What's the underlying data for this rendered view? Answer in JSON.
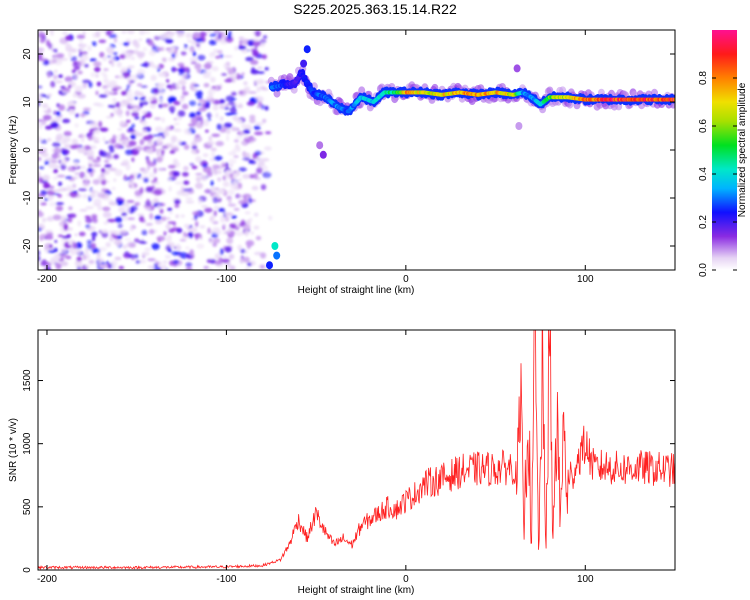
{
  "title": "S225.2025.363.15.14.R22",
  "chart_data": [
    {
      "type": "heatmap",
      "xlabel": "Height of straight line (km)",
      "ylabel": "Frequency (Hz)",
      "xlim": [
        -205,
        150
      ],
      "ylim": [
        -25,
        25
      ],
      "xticks": [
        -200,
        -100,
        0,
        100
      ],
      "xtick_labels": [
        "-200",
        "-100",
        "0",
        "100"
      ],
      "yticks": [
        20,
        10,
        0,
        -10,
        -20
      ],
      "ytick_labels": [
        "20",
        "10",
        "0",
        "-10",
        "-20"
      ],
      "noise_region_x": [
        -205,
        -78
      ],
      "signal_band": {
        "x": [
          -75,
          -62,
          -58,
          -52,
          -45,
          -38,
          -32,
          -25,
          -18,
          -12,
          -5,
          0,
          10,
          20,
          30,
          40,
          50,
          60,
          65,
          70,
          75,
          80,
          85,
          90,
          100,
          110,
          120,
          130,
          140,
          150
        ],
        "freq_hz": [
          13,
          14,
          16,
          12,
          11,
          9,
          8,
          11,
          10,
          12,
          12,
          12,
          12,
          11.5,
          12,
          11.5,
          12,
          11.5,
          12,
          11,
          9.5,
          11,
          11,
          11,
          10.5,
          10.5,
          10.5,
          10.5,
          10.5,
          10.5
        ],
        "amplitude": [
          0.35,
          0.2,
          0.25,
          0.3,
          0.3,
          0.35,
          0.3,
          0.4,
          0.4,
          0.45,
          0.55,
          0.85,
          0.7,
          0.75,
          0.8,
          0.85,
          0.8,
          0.7,
          0.35,
          0.35,
          0.4,
          0.6,
          0.7,
          0.7,
          0.9,
          0.95,
          0.95,
          0.95,
          0.95,
          0.95
        ]
      }
    },
    {
      "type": "colorbar",
      "label": "Normalized spectral amplitude",
      "range": [
        0,
        1
      ],
      "ticks": [
        0.0,
        0.2,
        0.4,
        0.6,
        0.8
      ],
      "tick_labels": [
        "0.0",
        "0.2",
        "0.4",
        "0.6",
        "0.8"
      ]
    },
    {
      "type": "line",
      "xlabel": "Height of straight line (km)",
      "ylabel": "SNR (10 * v/v)",
      "xlim": [
        -205,
        150
      ],
      "ylim": [
        0,
        1900
      ],
      "xticks": [
        -200,
        -100,
        0,
        100
      ],
      "xtick_labels": [
        "-200",
        "-100",
        "0",
        "100"
      ],
      "yticks": [
        0,
        500,
        1000,
        1500
      ],
      "ytick_labels": [
        "0",
        "500",
        "1000",
        "1500"
      ],
      "series": [
        {
          "name": "SNR",
          "color": "#ff2020",
          "x": [
            -205,
            -150,
            -100,
            -80,
            -70,
            -65,
            -60,
            -55,
            -50,
            -45,
            -40,
            -35,
            -30,
            -25,
            -20,
            -15,
            -10,
            -5,
            0,
            5,
            10,
            20,
            30,
            40,
            50,
            60,
            62,
            64,
            66,
            68,
            70,
            72,
            74,
            76,
            78,
            80,
            82,
            84,
            86,
            88,
            90,
            95,
            100,
            105,
            110,
            120,
            130,
            140,
            150
          ],
          "y": [
            20,
            20,
            25,
            35,
            80,
            200,
            400,
            250,
            450,
            300,
            200,
            250,
            200,
            350,
            400,
            450,
            500,
            480,
            550,
            600,
            680,
            720,
            780,
            800,
            800,
            820,
            700,
            1200,
            300,
            1400,
            200,
            1850,
            100,
            1600,
            150,
            1850,
            200,
            1300,
            400,
            1100,
            600,
            850,
            1000,
            800,
            820,
            800,
            810,
            800,
            790
          ],
          "spiky": true
        }
      ]
    }
  ]
}
